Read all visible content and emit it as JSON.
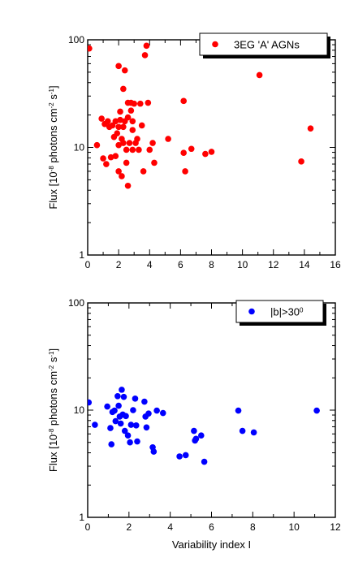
{
  "chart_data": [
    {
      "type": "scatter",
      "title": "",
      "ylabel": "Flux [10^-8 photons cm^-2 s^-1]",
      "xlabel": "",
      "xlim": [
        0,
        16
      ],
      "ylim": [
        1,
        100
      ],
      "yscale": "log",
      "x_ticks": [
        "0",
        "2",
        "4",
        "6",
        "8",
        "10",
        "12",
        "14",
        "16"
      ],
      "y_ticks": [
        "1",
        "10",
        "100"
      ],
      "legend": "top-right",
      "legend_box_style": "shadowed",
      "series": [
        {
          "name": "3EG 'A' AGNs",
          "color": "#ff0000",
          "points": [
            [
              0.1,
              83
            ],
            [
              0.6,
              10.5
            ],
            [
              0.9,
              18.5
            ],
            [
              1.0,
              7.9
            ],
            [
              1.1,
              16.5
            ],
            [
              1.2,
              7.0
            ],
            [
              1.3,
              17.5
            ],
            [
              1.4,
              15.5
            ],
            [
              1.5,
              8.1
            ],
            [
              1.6,
              16.0
            ],
            [
              1.7,
              12.5
            ],
            [
              1.8,
              8.3
            ],
            [
              1.8,
              17.5
            ],
            [
              1.9,
              13.5
            ],
            [
              2.0,
              6.0
            ],
            [
              2.0,
              10.5
            ],
            [
              2.0,
              15.5
            ],
            [
              2.0,
              57.0
            ],
            [
              2.1,
              18.0
            ],
            [
              2.1,
              21.5
            ],
            [
              2.2,
              12.0
            ],
            [
              2.2,
              5.4
            ],
            [
              2.3,
              15.5
            ],
            [
              2.3,
              35.0
            ],
            [
              2.3,
              11.0
            ],
            [
              2.4,
              17.5
            ],
            [
              2.4,
              52.0
            ],
            [
              2.5,
              9.5
            ],
            [
              2.5,
              7.2
            ],
            [
              2.6,
              19.0
            ],
            [
              2.6,
              26.0
            ],
            [
              2.6,
              4.4
            ],
            [
              2.7,
              11.0
            ],
            [
              2.8,
              22.0
            ],
            [
              2.8,
              26.0
            ],
            [
              2.9,
              9.5
            ],
            [
              2.9,
              14.5
            ],
            [
              2.9,
              17.5
            ],
            [
              3.0,
              25.5
            ],
            [
              3.1,
              11.0
            ],
            [
              3.2,
              12.0
            ],
            [
              3.3,
              9.5
            ],
            [
              3.4,
              25.5
            ],
            [
              3.5,
              16.0
            ],
            [
              3.6,
              6.0
            ],
            [
              3.7,
              72.0
            ],
            [
              3.8,
              88.0
            ],
            [
              3.9,
              26.0
            ],
            [
              4.0,
              9.5
            ],
            [
              4.2,
              11.0
            ],
            [
              4.3,
              7.2
            ],
            [
              5.2,
              12.0
            ],
            [
              6.2,
              27.0
            ],
            [
              6.2,
              8.9
            ],
            [
              6.3,
              6.0
            ],
            [
              6.7,
              9.7
            ],
            [
              7.6,
              8.7
            ],
            [
              8.0,
              9.1
            ],
            [
              11.1,
              47.0
            ],
            [
              13.8,
              7.4
            ],
            [
              14.4,
              15.0
            ]
          ]
        }
      ]
    },
    {
      "type": "scatter",
      "title": "",
      "ylabel": "Flux [10^-8 photons cm^-2 s^-1]",
      "xlabel": "Variability index I",
      "xlim": [
        0,
        12
      ],
      "ylim": [
        1,
        100
      ],
      "yscale": "log",
      "x_ticks": [
        "0",
        "2",
        "4",
        "6",
        "8",
        "10",
        "12"
      ],
      "y_ticks": [
        "1",
        "10",
        "100"
      ],
      "legend": "top-right",
      "legend_box_style": "shadowed",
      "series": [
        {
          "name": "|b|>30^0",
          "color": "#0000ff",
          "points": [
            [
              0.05,
              11.8
            ],
            [
              0.35,
              7.3
            ],
            [
              0.95,
              10.8
            ],
            [
              1.1,
              6.8
            ],
            [
              1.15,
              4.8
            ],
            [
              1.2,
              9.6
            ],
            [
              1.3,
              9.9
            ],
            [
              1.35,
              7.9
            ],
            [
              1.45,
              13.5
            ],
            [
              1.5,
              11.0
            ],
            [
              1.55,
              8.7
            ],
            [
              1.6,
              7.5
            ],
            [
              1.65,
              15.5
            ],
            [
              1.7,
              9.1
            ],
            [
              1.75,
              13.3
            ],
            [
              1.8,
              6.4
            ],
            [
              1.85,
              8.8
            ],
            [
              1.95,
              5.8
            ],
            [
              2.05,
              5.0
            ],
            [
              2.1,
              7.3
            ],
            [
              2.2,
              10.0
            ],
            [
              2.3,
              12.8
            ],
            [
              2.35,
              7.2
            ],
            [
              2.4,
              5.1
            ],
            [
              2.75,
              12.0
            ],
            [
              2.8,
              8.7
            ],
            [
              2.85,
              6.9
            ],
            [
              2.95,
              9.3
            ],
            [
              3.15,
              4.5
            ],
            [
              3.2,
              4.1
            ],
            [
              3.35,
              9.9
            ],
            [
              3.65,
              9.4
            ],
            [
              4.45,
              3.7
            ],
            [
              4.75,
              3.8
            ],
            [
              5.15,
              6.4
            ],
            [
              5.2,
              5.2
            ],
            [
              5.25,
              5.4
            ],
            [
              5.5,
              5.8
            ],
            [
              5.65,
              3.3
            ],
            [
              7.3,
              9.9
            ],
            [
              7.5,
              6.4
            ],
            [
              8.05,
              6.2
            ],
            [
              11.1,
              9.9
            ]
          ]
        }
      ]
    }
  ]
}
